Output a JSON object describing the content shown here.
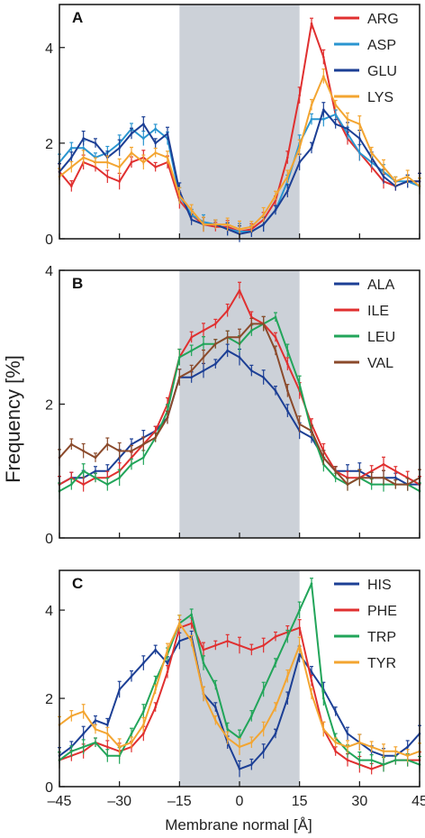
{
  "figure": {
    "ylabel": "Frequency [%]",
    "xlabel": "Membrane normal [Å]",
    "x_ticks": [
      "–45",
      "–30",
      "–15",
      "0",
      "15",
      "30",
      "45"
    ],
    "shaded_region": [
      -15,
      15
    ],
    "shade_color": "#ccd1d8"
  },
  "chart_data": [
    {
      "type": "line",
      "panel": "A",
      "xlim": [
        -45,
        45
      ],
      "ylim": [
        0,
        4.9
      ],
      "y_ticks": [
        0,
        2,
        4
      ],
      "legend_position": "top-right",
      "series": [
        {
          "name": "ARG",
          "color": "#e03030",
          "x": [
            -45,
            -42,
            -39,
            -36,
            -33,
            -30,
            -27,
            -24,
            -21,
            -18,
            -15,
            -12,
            -9,
            -6,
            -3,
            0,
            3,
            6,
            9,
            12,
            15,
            18,
            21,
            24,
            27,
            30,
            33,
            36,
            39,
            42,
            45
          ],
          "y": [
            1.4,
            1.1,
            1.6,
            1.5,
            1.3,
            1.2,
            1.6,
            1.7,
            1.5,
            1.6,
            0.8,
            0.5,
            0.3,
            0.25,
            0.25,
            0.15,
            0.2,
            0.4,
            0.8,
            1.7,
            3.0,
            4.5,
            3.8,
            2.6,
            2.1,
            1.8,
            1.5,
            1.2,
            1.1,
            1.2,
            1.2
          ]
        },
        {
          "name": "ASP",
          "color": "#2a95d0",
          "x": [
            -45,
            -42,
            -39,
            -36,
            -33,
            -30,
            -27,
            -24,
            -21,
            -18,
            -15,
            -12,
            -9,
            -6,
            -3,
            0,
            3,
            6,
            9,
            12,
            15,
            18,
            21,
            24,
            27,
            30,
            33,
            36,
            39,
            42,
            45
          ],
          "y": [
            1.6,
            1.9,
            1.9,
            1.7,
            1.8,
            2.0,
            2.3,
            2.1,
            2.3,
            2.1,
            0.9,
            0.5,
            0.35,
            0.3,
            0.2,
            0.15,
            0.15,
            0.3,
            0.6,
            1.2,
            2.0,
            2.5,
            2.5,
            2.6,
            2.2,
            1.8,
            1.6,
            1.4,
            1.2,
            1.2,
            1.1
          ]
        },
        {
          "name": "GLU",
          "color": "#1c3f95",
          "x": [
            -45,
            -42,
            -39,
            -36,
            -33,
            -30,
            -27,
            -24,
            -21,
            -18,
            -15,
            -12,
            -9,
            -6,
            -3,
            0,
            3,
            6,
            9,
            12,
            15,
            18,
            21,
            24,
            27,
            30,
            33,
            36,
            39,
            42,
            45
          ],
          "y": [
            1.4,
            1.7,
            2.1,
            2.0,
            1.7,
            1.9,
            2.2,
            2.4,
            2.0,
            2.2,
            1.0,
            0.4,
            0.3,
            0.3,
            0.2,
            0.1,
            0.15,
            0.3,
            0.6,
            1.0,
            1.6,
            1.9,
            2.7,
            2.4,
            2.3,
            2.1,
            1.7,
            1.3,
            1.1,
            1.2,
            1.2
          ]
        },
        {
          "name": "LYS",
          "color": "#f3a531",
          "x": [
            -45,
            -42,
            -39,
            -36,
            -33,
            -30,
            -27,
            -24,
            -21,
            -18,
            -15,
            -12,
            -9,
            -6,
            -3,
            0,
            3,
            6,
            9,
            12,
            15,
            18,
            21,
            24,
            27,
            30,
            33,
            36,
            39,
            42,
            45
          ],
          "y": [
            1.3,
            1.5,
            1.7,
            1.6,
            1.6,
            1.5,
            1.8,
            1.6,
            1.8,
            1.7,
            0.9,
            0.6,
            0.3,
            0.3,
            0.3,
            0.2,
            0.25,
            0.5,
            0.9,
            1.3,
            1.9,
            2.8,
            3.4,
            2.8,
            2.5,
            2.4,
            1.8,
            1.5,
            1.2,
            1.3,
            1.1
          ]
        }
      ]
    },
    {
      "type": "line",
      "panel": "B",
      "xlim": [
        -45,
        45
      ],
      "ylim": [
        0,
        4
      ],
      "y_ticks": [
        0,
        2,
        4
      ],
      "legend_position": "top-right",
      "series": [
        {
          "name": "ALA",
          "color": "#1c3f95",
          "x": [
            -45,
            -42,
            -39,
            -36,
            -33,
            -30,
            -27,
            -24,
            -21,
            -18,
            -15,
            -12,
            -9,
            -6,
            -3,
            0,
            3,
            6,
            9,
            12,
            15,
            18,
            21,
            24,
            27,
            30,
            33,
            36,
            39,
            42,
            45
          ],
          "y": [
            0.8,
            0.9,
            0.9,
            1.0,
            1.0,
            1.2,
            1.4,
            1.5,
            1.6,
            1.8,
            2.4,
            2.4,
            2.5,
            2.6,
            2.8,
            2.7,
            2.5,
            2.4,
            2.2,
            1.9,
            1.6,
            1.5,
            1.2,
            1.0,
            1.0,
            1.0,
            0.9,
            0.9,
            0.9,
            0.8,
            0.8
          ]
        },
        {
          "name": "ILE",
          "color": "#e03030",
          "x": [
            -45,
            -42,
            -39,
            -36,
            -33,
            -30,
            -27,
            -24,
            -21,
            -18,
            -15,
            -12,
            -9,
            -6,
            -3,
            0,
            3,
            6,
            9,
            12,
            15,
            18,
            21,
            24,
            27,
            30,
            33,
            36,
            39,
            42,
            45
          ],
          "y": [
            0.8,
            0.9,
            0.8,
            0.9,
            0.9,
            1.0,
            1.2,
            1.4,
            1.6,
            2.0,
            2.7,
            3.0,
            3.1,
            3.2,
            3.4,
            3.7,
            3.3,
            3.2,
            3.0,
            2.6,
            2.2,
            1.7,
            1.3,
            1.0,
            0.9,
            0.9,
            1.0,
            1.1,
            1.0,
            0.9,
            0.8
          ]
        },
        {
          "name": "LEU",
          "color": "#22a55a",
          "x": [
            -45,
            -42,
            -39,
            -36,
            -33,
            -30,
            -27,
            -24,
            -21,
            -18,
            -15,
            -12,
            -9,
            -6,
            -3,
            0,
            3,
            6,
            9,
            12,
            15,
            18,
            21,
            24,
            27,
            30,
            33,
            36,
            39,
            42,
            45
          ],
          "y": [
            0.7,
            0.8,
            1.0,
            0.9,
            0.8,
            0.9,
            1.1,
            1.2,
            1.5,
            1.9,
            2.7,
            2.8,
            2.9,
            2.9,
            3.0,
            2.9,
            3.1,
            3.2,
            3.3,
            2.8,
            2.3,
            1.6,
            1.1,
            0.9,
            0.8,
            0.9,
            0.8,
            0.8,
            0.8,
            0.8,
            0.7
          ]
        },
        {
          "name": "VAL",
          "color": "#8b4a2b",
          "x": [
            -45,
            -42,
            -39,
            -36,
            -33,
            -30,
            -27,
            -24,
            -21,
            -18,
            -15,
            -12,
            -9,
            -6,
            -3,
            0,
            3,
            6,
            9,
            12,
            15,
            18,
            21,
            24,
            27,
            30,
            33,
            36,
            39,
            42,
            45
          ],
          "y": [
            1.2,
            1.4,
            1.3,
            1.2,
            1.4,
            1.3,
            1.3,
            1.4,
            1.5,
            1.8,
            2.4,
            2.5,
            2.7,
            2.9,
            3.0,
            3.0,
            3.2,
            3.2,
            2.8,
            2.2,
            1.7,
            1.6,
            1.2,
            1.0,
            0.8,
            0.9,
            0.9,
            0.9,
            0.8,
            0.8,
            0.9
          ]
        }
      ]
    },
    {
      "type": "line",
      "panel": "C",
      "xlim": [
        -45,
        45
      ],
      "ylim": [
        0,
        4.9
      ],
      "y_ticks": [
        0,
        2,
        4
      ],
      "legend_position": "top-right",
      "series": [
        {
          "name": "HIS",
          "color": "#1c3f95",
          "x": [
            -45,
            -42,
            -39,
            -36,
            -33,
            -30,
            -27,
            -24,
            -21,
            -18,
            -15,
            -12,
            -9,
            -6,
            -3,
            0,
            3,
            6,
            9,
            12,
            15,
            18,
            21,
            24,
            27,
            30,
            33,
            36,
            39,
            42,
            45
          ],
          "y": [
            0.7,
            0.9,
            1.2,
            1.5,
            1.4,
            2.2,
            2.5,
            2.8,
            3.1,
            2.8,
            3.3,
            3.4,
            2.1,
            1.8,
            1.0,
            0.4,
            0.5,
            0.8,
            1.2,
            2.0,
            3.0,
            2.6,
            2.2,
            1.7,
            1.2,
            1.0,
            0.8,
            0.7,
            0.7,
            0.9,
            1.2
          ]
        },
        {
          "name": "PHE",
          "color": "#e03030",
          "x": [
            -45,
            -42,
            -39,
            -36,
            -33,
            -30,
            -27,
            -24,
            -21,
            -18,
            -15,
            -12,
            -9,
            -6,
            -3,
            0,
            3,
            6,
            9,
            12,
            15,
            18,
            21,
            24,
            27,
            30,
            33,
            36,
            39,
            42,
            45
          ],
          "y": [
            0.6,
            0.7,
            0.8,
            1.0,
            0.9,
            0.8,
            0.9,
            1.2,
            1.8,
            2.6,
            3.6,
            3.7,
            3.1,
            3.2,
            3.3,
            3.2,
            3.1,
            3.2,
            3.4,
            3.5,
            3.6,
            2.4,
            1.3,
            0.8,
            0.6,
            0.5,
            0.4,
            0.5,
            0.6,
            0.6,
            0.6
          ]
        },
        {
          "name": "TRP",
          "color": "#22a55a",
          "x": [
            -45,
            -42,
            -39,
            -36,
            -33,
            -30,
            -27,
            -24,
            -21,
            -18,
            -15,
            -12,
            -9,
            -6,
            -3,
            0,
            3,
            6,
            9,
            12,
            15,
            18,
            21,
            24,
            27,
            30,
            33,
            36,
            39,
            42,
            45
          ],
          "y": [
            0.6,
            0.8,
            0.9,
            1.0,
            0.7,
            0.7,
            1.2,
            1.7,
            2.4,
            3.0,
            3.7,
            3.9,
            2.8,
            2.3,
            1.3,
            1.1,
            1.6,
            2.2,
            2.8,
            3.4,
            4.0,
            4.6,
            2.0,
            1.1,
            0.8,
            0.6,
            0.6,
            0.5,
            0.6,
            0.6,
            0.5
          ]
        },
        {
          "name": "TYR",
          "color": "#f3a531",
          "x": [
            -45,
            -42,
            -39,
            -36,
            -33,
            -30,
            -27,
            -24,
            -21,
            -18,
            -15,
            -12,
            -9,
            -6,
            -3,
            0,
            3,
            6,
            9,
            12,
            15,
            18,
            21,
            24,
            27,
            30,
            33,
            36,
            39,
            42,
            45
          ],
          "y": [
            1.4,
            1.6,
            1.7,
            1.3,
            1.2,
            0.9,
            1.0,
            1.4,
            2.2,
            3.1,
            3.7,
            3.3,
            2.1,
            1.5,
            1.1,
            0.9,
            1.0,
            1.3,
            1.8,
            2.5,
            3.2,
            2.1,
            1.3,
            1.0,
            0.9,
            1.0,
            0.9,
            0.8,
            0.8,
            0.7,
            0.8
          ]
        }
      ]
    }
  ]
}
